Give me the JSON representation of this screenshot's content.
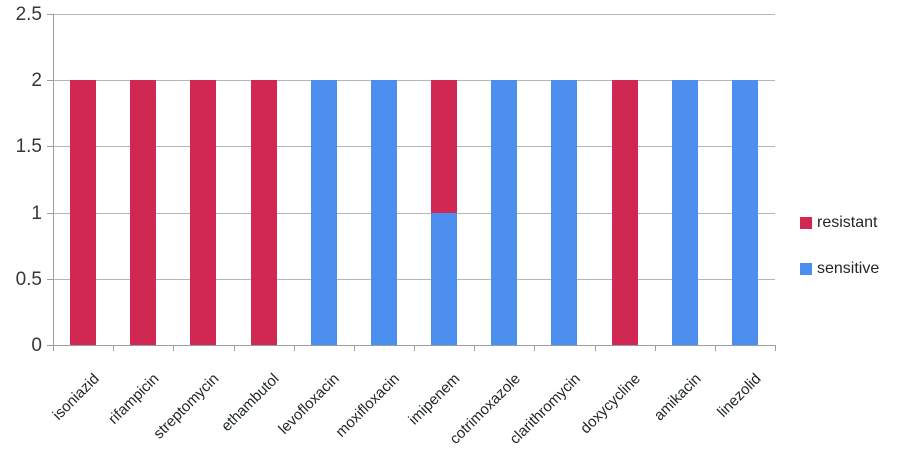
{
  "chart_data": {
    "type": "bar",
    "stacked": true,
    "title": "",
    "xlabel": "",
    "ylabel": "",
    "categories": [
      "isoniazid",
      "rifampicin",
      "streptomycin",
      "ethambutol",
      "levofloxacin",
      "moxifloxacin",
      "imipenem",
      "cotrimoxazole",
      "clarithromycin",
      "doxycycline",
      "amikacin",
      "linezolid"
    ],
    "series": [
      {
        "name": "resistant",
        "color": "#d02853",
        "values": [
          2,
          2,
          2,
          2,
          0,
          0,
          1,
          0,
          0,
          2,
          0,
          0
        ]
      },
      {
        "name": "sensitive",
        "color": "#4d8fee",
        "values": [
          0,
          0,
          0,
          0,
          2,
          2,
          1,
          2,
          2,
          0,
          2,
          2
        ]
      }
    ],
    "ylim": [
      0,
      2.5
    ],
    "ytick_step": 0.5,
    "ytick_labels": [
      "0",
      "0.5",
      "1",
      "1.5",
      "2",
      "2.5"
    ],
    "grid": true,
    "legend_position": "right"
  }
}
